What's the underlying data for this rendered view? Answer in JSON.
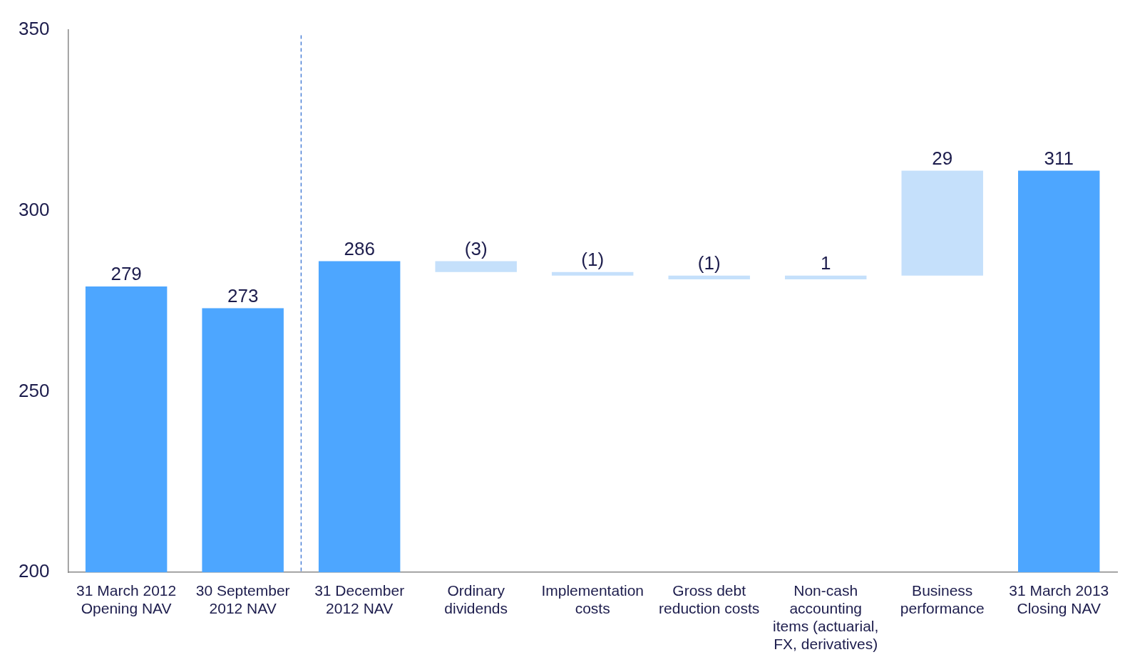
{
  "chart_data": {
    "type": "bar",
    "categories": [
      "31 March 2012 Opening NAV",
      "30 September 2012 NAV",
      "31 December 2012 NAV",
      "Ordinary dividends",
      "Implementation costs",
      "Gross debt reduction costs",
      "Non-cash accounting items (actuarial, FX, derivatives)",
      "Business performance",
      "31 March 2013 Closing NAV"
    ],
    "values": [
      79,
      73,
      86,
      -3,
      -1,
      -1,
      1,
      29,
      111
    ],
    "base": [
      200,
      200,
      200,
      286,
      283,
      282,
      281,
      282,
      200
    ],
    "colors": [
      "#4da6ff",
      "#4da6ff",
      "#4da6ff",
      "#c5e0fb",
      "#c5e0fb",
      "#c5e0fb",
      "#c5e0fb",
      "#c5e0fb",
      "#4da6ff"
    ],
    "value_labels": [
      "279",
      "273",
      "286",
      "(3)",
      "(1)",
      "(1)",
      "1",
      "29",
      "311"
    ],
    "ylim": [
      200,
      350
    ],
    "yticks": [
      200,
      250,
      300,
      350
    ],
    "grid": false,
    "legend": false,
    "ref_lines": [
      {
        "axis": "x",
        "value": "31 December 2012 NAV",
        "color": "#4a7fd6",
        "line_style": "dashed"
      }
    ]
  }
}
